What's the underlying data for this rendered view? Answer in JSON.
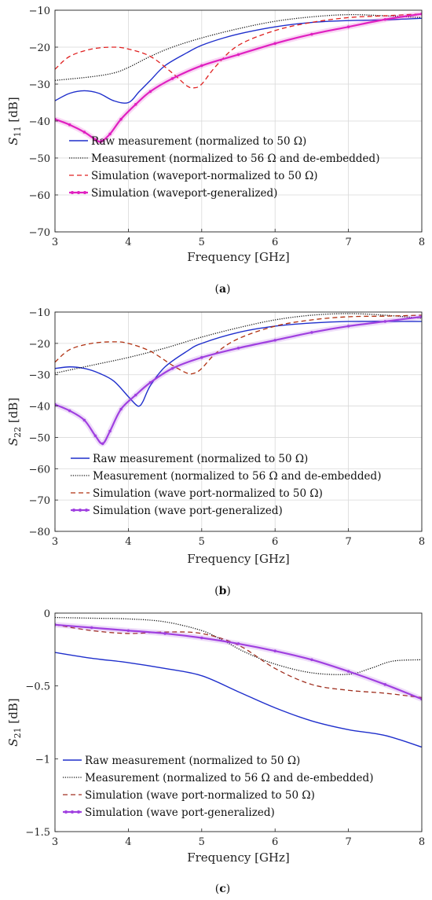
{
  "chart_data": [
    {
      "type": "line",
      "caption_pre": "(",
      "caption_letter": "a",
      "caption_post": ")",
      "xlabel": "Frequency [GHz]",
      "ylabel_main": "S",
      "ylabel_sub": "11",
      "ylabel_unit": " [dB]",
      "xlim": [
        3,
        8
      ],
      "ylim": [
        -70,
        -10
      ],
      "xticks": [
        "3",
        "4",
        "5",
        "6",
        "7",
        "8"
      ],
      "yticks": [
        "−10",
        "−20",
        "−30",
        "−40",
        "−50",
        "−60",
        "−70"
      ],
      "grid": true,
      "legend_position": "lower-center",
      "series": [
        {
          "name": "Raw measurement (normalized to 50 Ω)",
          "color": "#1f2fcc",
          "style": "solid",
          "x": [
            3.0,
            3.2,
            3.4,
            3.6,
            3.8,
            4.0,
            4.15,
            4.3,
            4.5,
            4.8,
            5.0,
            5.3,
            5.6,
            6.0,
            6.5,
            7.0,
            7.5,
            8.0
          ],
          "y": [
            -34.5,
            -32.5,
            -31.8,
            -32.5,
            -34.5,
            -35.0,
            -32.0,
            -29.0,
            -25.0,
            -21.5,
            -19.5,
            -17.5,
            -16.0,
            -14.5,
            -13.3,
            -12.8,
            -12.6,
            -12.2
          ]
        },
        {
          "name": "Measurement (normalized to 56 Ω and de-embedded)",
          "color": "#111111",
          "style": "dotted",
          "x": [
            3.0,
            3.5,
            3.8,
            4.0,
            4.3,
            4.6,
            5.0,
            5.5,
            6.0,
            6.5,
            7.0,
            7.5,
            8.0
          ],
          "y": [
            -29.0,
            -28.0,
            -27.0,
            -25.5,
            -22.5,
            -20.0,
            -17.5,
            -15.0,
            -13.0,
            -11.8,
            -11.2,
            -11.5,
            -12.0
          ]
        },
        {
          "name": "Simulation (waveport-normalized to 50 Ω)",
          "color": "#e02020",
          "style": "dashed",
          "x": [
            3.0,
            3.2,
            3.5,
            3.8,
            4.0,
            4.3,
            4.6,
            4.8,
            4.9,
            5.0,
            5.2,
            5.5,
            6.0,
            6.5,
            7.0,
            7.5,
            8.0
          ],
          "y": [
            -26.0,
            -22.5,
            -20.5,
            -20.0,
            -20.5,
            -22.5,
            -27.0,
            -30.5,
            -31.0,
            -30.0,
            -25.0,
            -19.5,
            -15.5,
            -13.3,
            -12.0,
            -11.5,
            -11.0
          ]
        },
        {
          "name": "Simulation (waveport-generalized)",
          "color": "#e020c0",
          "style": "solid-marker",
          "x": [
            3.0,
            3.2,
            3.4,
            3.55,
            3.63,
            3.75,
            3.9,
            4.1,
            4.3,
            4.6,
            5.0,
            5.5,
            6.0,
            6.5,
            7.0,
            7.5,
            8.0
          ],
          "y": [
            -39.5,
            -41.0,
            -43.0,
            -45.0,
            -45.5,
            -43.5,
            -39.5,
            -35.5,
            -32.0,
            -28.5,
            -25.0,
            -22.0,
            -19.0,
            -16.5,
            -14.5,
            -12.5,
            -11.0
          ]
        }
      ]
    },
    {
      "type": "line",
      "caption_pre": "(",
      "caption_letter": "b",
      "caption_post": ")",
      "xlabel": "Frequency [GHz]",
      "ylabel_main": "S",
      "ylabel_sub": "22",
      "ylabel_unit": " [dB]",
      "xlim": [
        3,
        8
      ],
      "ylim": [
        -80,
        -10
      ],
      "xticks": [
        "3",
        "4",
        "5",
        "6",
        "7",
        "8"
      ],
      "yticks": [
        "−10",
        "−20",
        "−30",
        "−40",
        "−50",
        "−60",
        "−70",
        "−80"
      ],
      "grid": true,
      "legend_position": "lower-center",
      "series": [
        {
          "name": "Raw measurement (normalized to 50 Ω)",
          "color": "#1f2fcc",
          "style": "solid",
          "x": [
            3.0,
            3.2,
            3.4,
            3.6,
            3.8,
            4.0,
            4.1,
            4.15,
            4.2,
            4.3,
            4.5,
            4.8,
            5.0,
            5.5,
            6.0,
            6.5,
            7.0,
            7.5,
            8.0
          ],
          "y": [
            -28.0,
            -27.5,
            -28.0,
            -29.5,
            -32.0,
            -37.0,
            -39.5,
            -40.0,
            -38.5,
            -33.5,
            -27.5,
            -22.5,
            -20.0,
            -16.5,
            -14.5,
            -13.5,
            -13.0,
            -13.0,
            -13.0
          ]
        },
        {
          "name": "Measurement (normalized to 56 Ω and de-embedded)",
          "color": "#111111",
          "style": "dotted",
          "x": [
            3.0,
            3.5,
            4.0,
            4.5,
            5.0,
            5.5,
            6.0,
            6.5,
            7.0,
            7.5,
            8.0
          ],
          "y": [
            -29.5,
            -27.0,
            -24.5,
            -21.5,
            -18.0,
            -15.0,
            -12.5,
            -11.0,
            -10.5,
            -11.0,
            -12.0
          ]
        },
        {
          "name": "Simulation (wave port-normalized to 50 Ω)",
          "color": "#b03010",
          "style": "dashed",
          "x": [
            3.0,
            3.2,
            3.5,
            3.8,
            4.0,
            4.3,
            4.6,
            4.8,
            4.9,
            5.0,
            5.2,
            5.5,
            6.0,
            6.5,
            7.0,
            7.5,
            8.0
          ],
          "y": [
            -26.0,
            -22.0,
            -20.0,
            -19.5,
            -20.0,
            -22.5,
            -27.0,
            -29.5,
            -29.5,
            -28.0,
            -23.0,
            -18.5,
            -14.5,
            -12.5,
            -11.5,
            -11.3,
            -11.0
          ]
        },
        {
          "name": "Simulation (wave port-generalized)",
          "color": "#a040e0",
          "style": "solid-marker",
          "x": [
            3.0,
            3.2,
            3.4,
            3.55,
            3.65,
            3.75,
            3.9,
            4.1,
            4.3,
            4.6,
            5.0,
            5.5,
            6.0,
            6.5,
            7.0,
            7.5,
            8.0
          ],
          "y": [
            -39.5,
            -41.5,
            -44.5,
            -49.5,
            -52.0,
            -48.0,
            -41.0,
            -36.5,
            -32.5,
            -28.0,
            -24.5,
            -21.5,
            -19.0,
            -16.5,
            -14.5,
            -13.0,
            -11.5
          ]
        }
      ]
    },
    {
      "type": "line",
      "caption_pre": "(",
      "caption_letter": "c",
      "caption_post": ")",
      "xlabel": "Frequency [GHz]",
      "ylabel_main": "S",
      "ylabel_sub": "21",
      "ylabel_unit": " [dB]",
      "xlim": [
        3,
        8
      ],
      "ylim": [
        -1.5,
        0
      ],
      "xticks": [
        "3",
        "4",
        "5",
        "6",
        "7",
        "8"
      ],
      "yticks": [
        "0",
        "−0.5",
        "−1",
        "−1.5"
      ],
      "ytick_values": [
        0,
        -0.5,
        -1,
        -1.5
      ],
      "grid": false,
      "legend_position": "lower-center",
      "series": [
        {
          "name": "Raw measurement (normalized to 50 Ω)",
          "color": "#1f2fcc",
          "style": "solid",
          "x": [
            3.0,
            3.5,
            4.0,
            4.5,
            5.0,
            5.5,
            6.0,
            6.5,
            7.0,
            7.5,
            8.0
          ],
          "y": [
            -0.27,
            -0.31,
            -0.34,
            -0.38,
            -0.43,
            -0.54,
            -0.65,
            -0.74,
            -0.8,
            -0.84,
            -0.92
          ]
        },
        {
          "name": "Measurement (normalized to 56 Ω and de-embedded)",
          "color": "#111111",
          "style": "dotted",
          "x": [
            3.0,
            3.5,
            4.0,
            4.5,
            5.0,
            5.3,
            5.6,
            6.0,
            6.5,
            7.0,
            7.3,
            7.6,
            8.0
          ],
          "y": [
            -0.03,
            -0.035,
            -0.04,
            -0.06,
            -0.12,
            -0.19,
            -0.27,
            -0.35,
            -0.41,
            -0.42,
            -0.38,
            -0.33,
            -0.32
          ]
        },
        {
          "name": "Simulation (wave port-normalized to 50 Ω)",
          "color": "#a03020",
          "style": "dashed",
          "x": [
            3.0,
            3.5,
            4.0,
            4.5,
            5.0,
            5.5,
            6.0,
            6.5,
            7.0,
            7.5,
            8.0
          ],
          "y": [
            -0.08,
            -0.12,
            -0.14,
            -0.13,
            -0.14,
            -0.22,
            -0.38,
            -0.49,
            -0.53,
            -0.55,
            -0.58
          ]
        },
        {
          "name": "Simulation (wave port-generalized)",
          "color": "#a040e0",
          "style": "solid-marker",
          "x": [
            3.0,
            3.5,
            4.0,
            4.5,
            5.0,
            5.5,
            6.0,
            6.5,
            7.0,
            7.5,
            8.0
          ],
          "y": [
            -0.08,
            -0.1,
            -0.12,
            -0.14,
            -0.17,
            -0.21,
            -0.26,
            -0.32,
            -0.4,
            -0.49,
            -0.59
          ]
        }
      ]
    }
  ]
}
